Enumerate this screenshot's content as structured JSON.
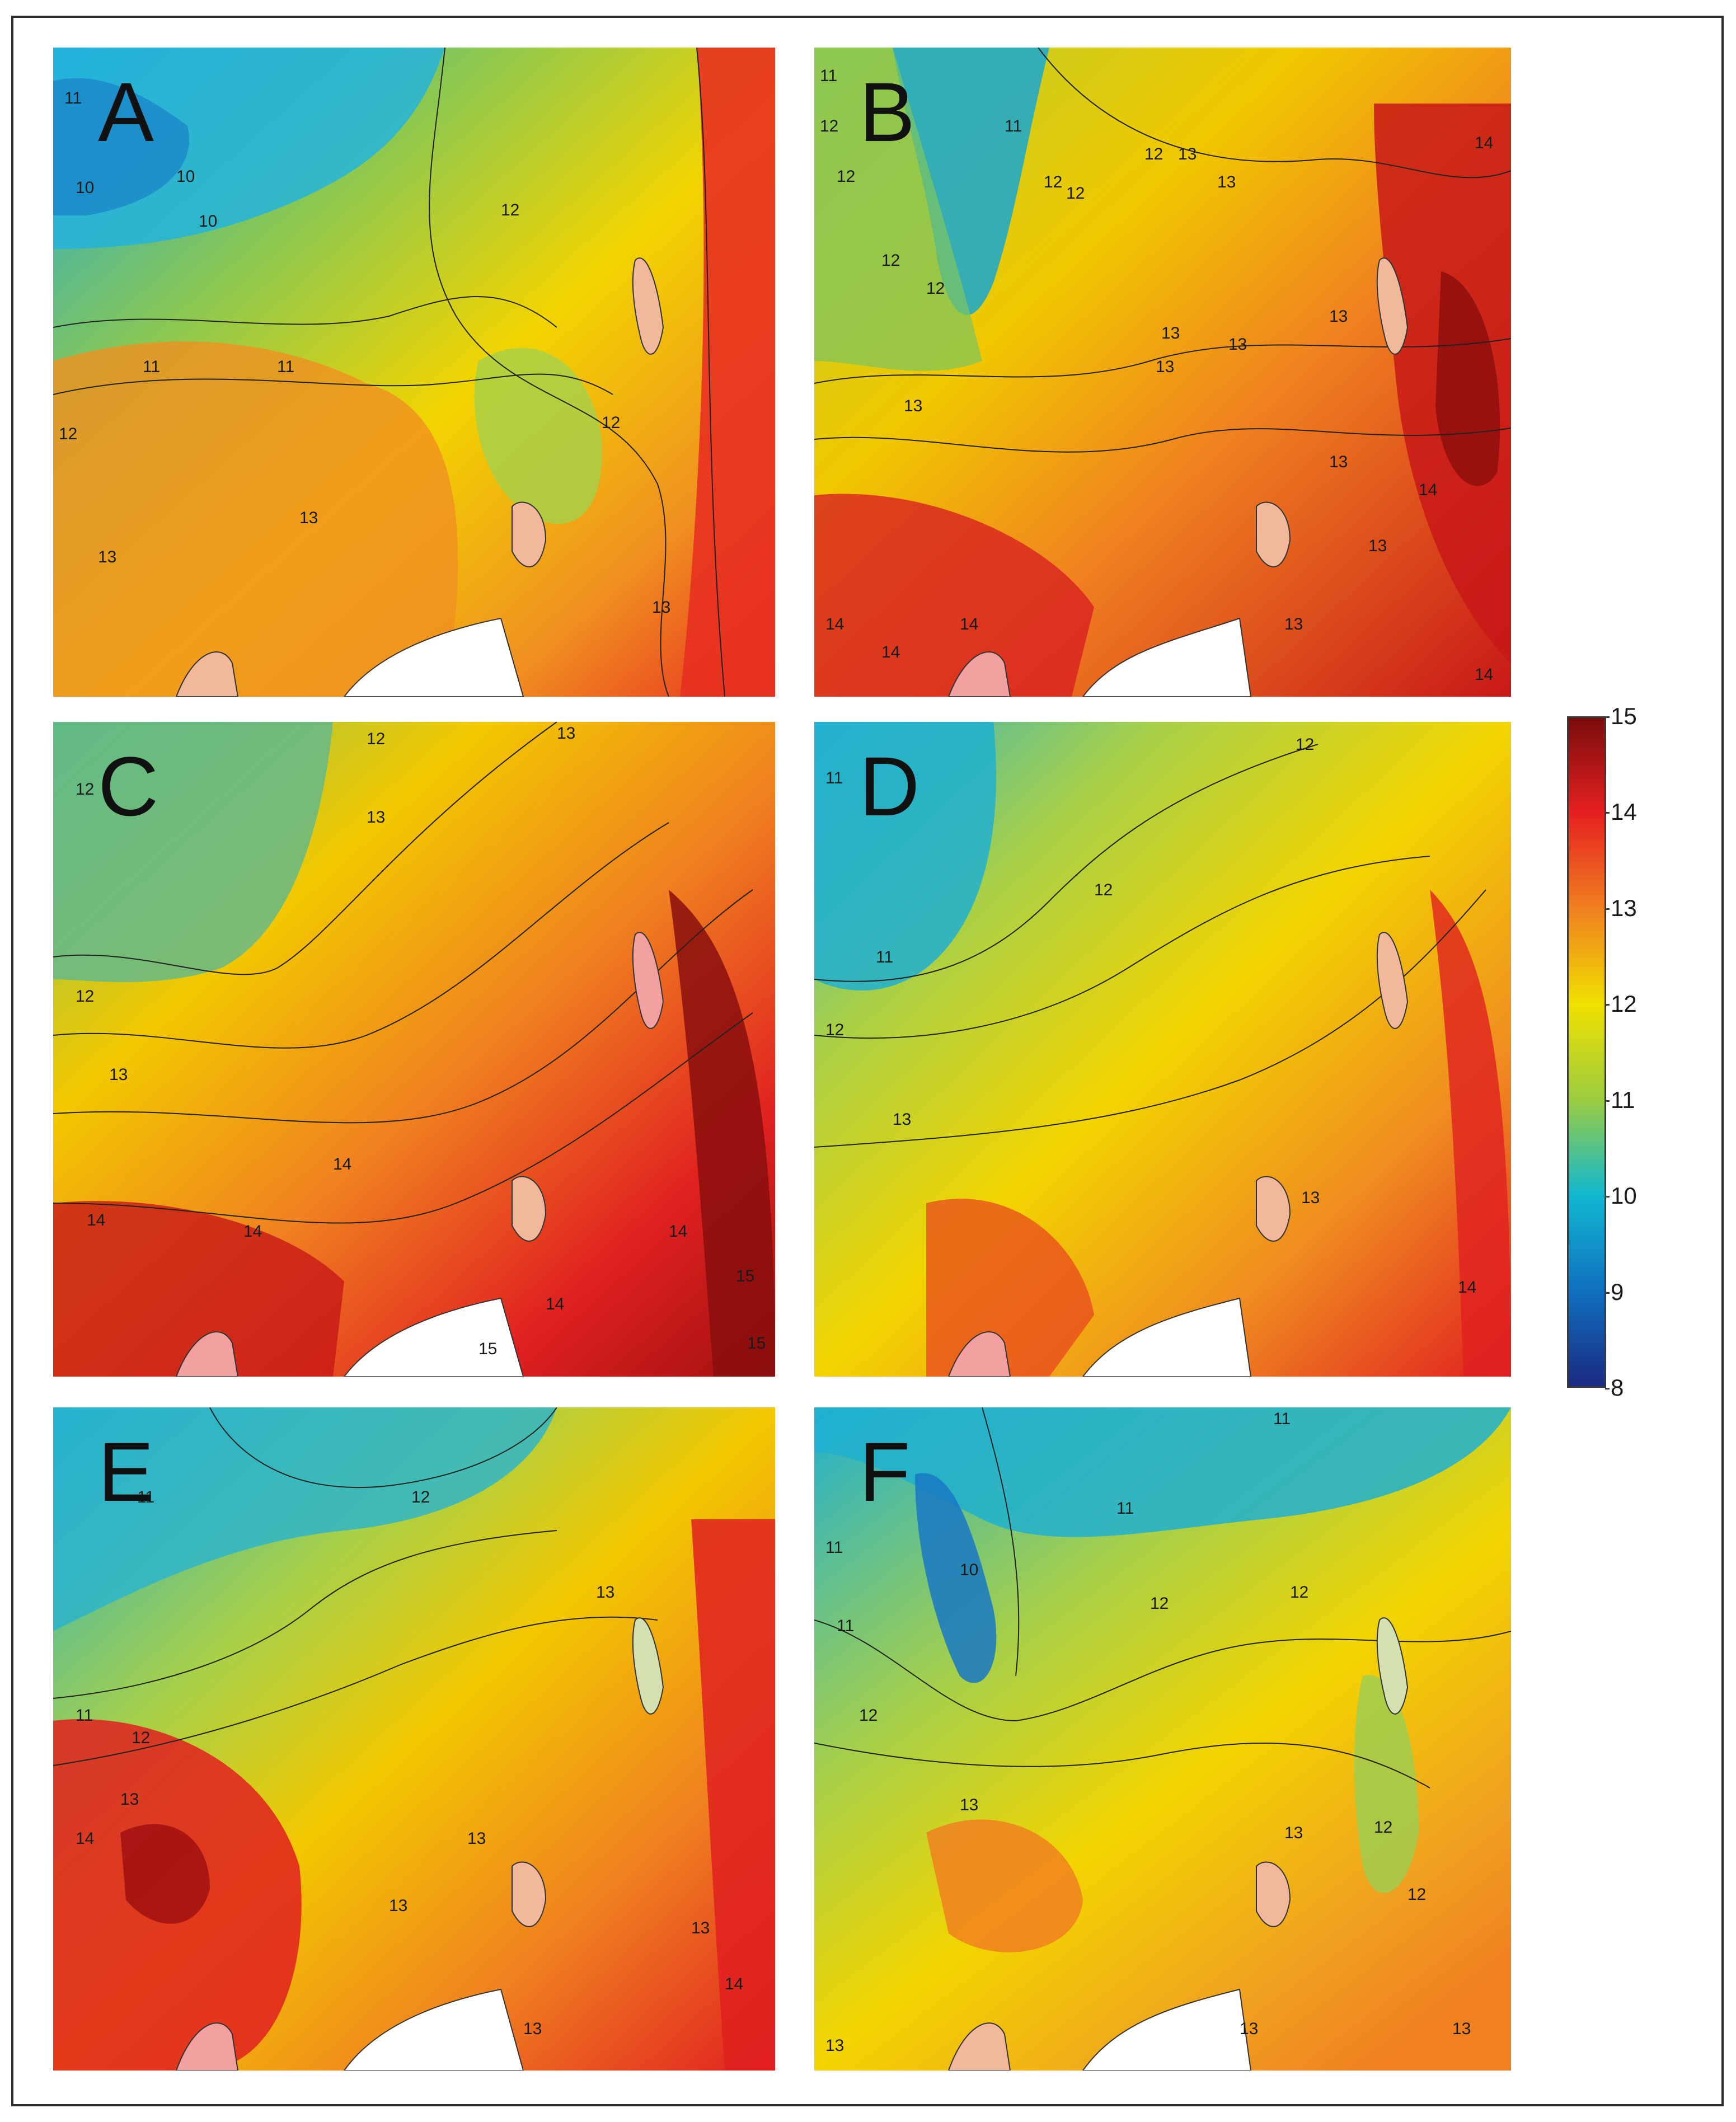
{
  "figure": {
    "panels": [
      {
        "letter": "A",
        "contour_labels": [
          "11",
          "10",
          "10",
          "10",
          "12",
          "11",
          "11",
          "12",
          "12",
          "13",
          "13",
          "13"
        ]
      },
      {
        "letter": "B",
        "contour_labels": [
          "11",
          "12",
          "12",
          "11",
          "12",
          "12",
          "12",
          "13",
          "13",
          "14",
          "12",
          "12",
          "13",
          "13",
          "13",
          "13",
          "13",
          "13",
          "14",
          "14",
          "14",
          "13",
          "13",
          "14",
          "14"
        ]
      },
      {
        "letter": "C",
        "contour_labels": [
          "12",
          "13",
          "12",
          "13",
          "12",
          "13",
          "14",
          "14",
          "14",
          "14",
          "14",
          "15",
          "15",
          "15"
        ]
      },
      {
        "letter": "D",
        "contour_labels": [
          "11",
          "12",
          "12",
          "11",
          "12",
          "13",
          "13",
          "14"
        ]
      },
      {
        "letter": "E",
        "contour_labels": [
          "11",
          "12",
          "13",
          "11",
          "12",
          "13",
          "14",
          "13",
          "13",
          "13",
          "13",
          "14"
        ]
      },
      {
        "letter": "F",
        "contour_labels": [
          "11",
          "11",
          "10",
          "11",
          "11",
          "12",
          "12",
          "12",
          "13",
          "13",
          "12",
          "12",
          "13",
          "13",
          "13"
        ]
      }
    ],
    "colorbar": {
      "ticks": [
        "15",
        "14",
        "13",
        "12",
        "11",
        "10",
        "9",
        "8"
      ],
      "colors": [
        "#7a0c0c",
        "#e62020",
        "#f08020",
        "#f0e000",
        "#9ccc40",
        "#10b8d0",
        "#1070c0",
        "#1a2a80"
      ]
    }
  }
}
